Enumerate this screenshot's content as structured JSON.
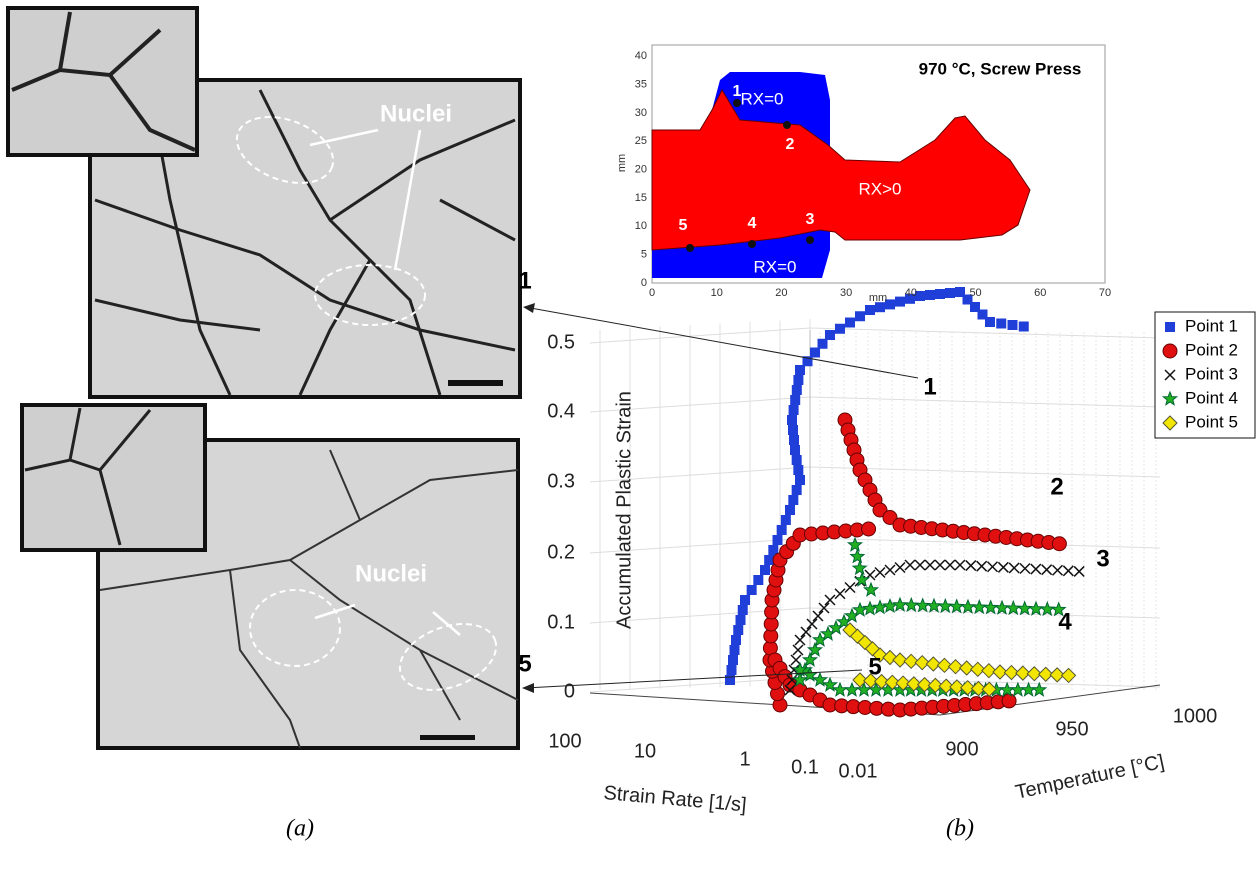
{
  "panel_a": {
    "top_label": "Nuclei",
    "bottom_label": "Nuclei",
    "caption": "(a)"
  },
  "panel_b": {
    "map": {
      "title": "970 °C, Screw Press",
      "x_label": "mm",
      "y_label": "mm",
      "xticks": [
        0,
        10,
        20,
        30,
        40,
        50,
        60,
        70
      ],
      "yticks": [
        0,
        5,
        10,
        15,
        20,
        25,
        30,
        35,
        40
      ],
      "region_labels": [
        "RX=0",
        "RX>0",
        "RX=0"
      ],
      "point_labels": [
        "1",
        "2",
        "3",
        "4",
        "5"
      ]
    },
    "plot": {
      "z_label": "Accumulated Plastic Strain",
      "x_label": "Strain Rate [1/s]",
      "y_label": "Temperature [°C]",
      "zticks": [
        0,
        0.1,
        0.2,
        0.3,
        0.4,
        0.5
      ],
      "strain_rate_ticks": [
        100,
        10,
        1,
        0.1,
        0.01
      ],
      "temperature_ticks": [
        900,
        950,
        1000
      ],
      "legend": [
        "Point 1",
        "Point 2",
        "Point 3",
        "Point 4",
        "Point 5"
      ],
      "callouts": [
        "1",
        "2",
        "3",
        "4",
        "5"
      ]
    },
    "left_callouts": [
      "1",
      "5"
    ],
    "caption": "(b)"
  }
}
